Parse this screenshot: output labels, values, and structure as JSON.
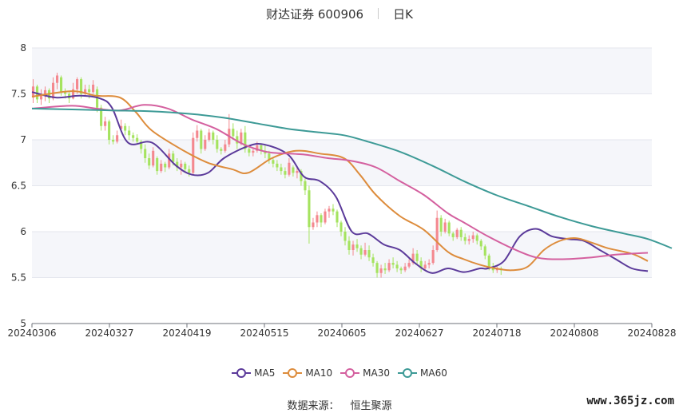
{
  "header": {
    "stock_name_code": "财达证券 600906",
    "period": "日K"
  },
  "footer": {
    "source_label": "数据来源：",
    "source_name": "恒生聚源"
  },
  "watermark": "www.365jz.com",
  "colors": {
    "up": "#f4888f",
    "down": "#a5e35f",
    "MA5": "#5b3a9a",
    "MA10": "#dd8c3c",
    "MA30": "#d4609f",
    "MA60": "#3d9a96",
    "band": "#f5f6fa",
    "grid": "#e4e6ee"
  },
  "chart_data": {
    "type": "candlestick",
    "title": "财达证券 600906",
    "period": "日K",
    "ylim": [
      5,
      8
    ],
    "y_ticks": [
      "8",
      "7.5",
      "7",
      "6.5",
      "6",
      "5.5",
      "5"
    ],
    "x_ticks": [
      "20240306",
      "20240327",
      "20240419",
      "20240515",
      "20240605",
      "20240627",
      "20240718",
      "20240808",
      "20240828"
    ],
    "grid": true,
    "legend": {
      "position": "bottom",
      "items": [
        "MA5",
        "MA10",
        "MA30",
        "MA60"
      ]
    },
    "ohlc_columns": [
      "open",
      "high",
      "low",
      "close"
    ],
    "candles": [
      [
        7.46,
        7.66,
        7.4,
        7.58
      ],
      [
        7.58,
        7.6,
        7.4,
        7.44
      ],
      [
        7.44,
        7.55,
        7.38,
        7.48
      ],
      [
        7.48,
        7.58,
        7.42,
        7.54
      ],
      [
        7.54,
        7.56,
        7.4,
        7.45
      ],
      [
        7.45,
        7.68,
        7.43,
        7.62
      ],
      [
        7.62,
        7.73,
        7.55,
        7.7
      ],
      [
        7.68,
        7.7,
        7.48,
        7.52
      ],
      [
        7.52,
        7.56,
        7.45,
        7.5
      ],
      [
        7.5,
        7.52,
        7.4,
        7.45
      ],
      [
        7.45,
        7.62,
        7.44,
        7.55
      ],
      [
        7.55,
        7.68,
        7.5,
        7.66
      ],
      [
        7.66,
        7.68,
        7.45,
        7.5
      ],
      [
        7.5,
        7.6,
        7.48,
        7.55
      ],
      [
        7.55,
        7.6,
        7.45,
        7.52
      ],
      [
        7.52,
        7.65,
        7.5,
        7.6
      ],
      [
        7.55,
        7.58,
        7.3,
        7.35
      ],
      [
        7.35,
        7.38,
        7.1,
        7.15
      ],
      [
        7.15,
        7.25,
        7.1,
        7.2
      ],
      [
        7.2,
        7.22,
        6.95,
        7.0
      ],
      [
        7.0,
        7.05,
        6.95,
        6.98
      ],
      [
        6.98,
        7.1,
        6.96,
        7.05
      ],
      [
        7.12,
        7.22,
        7.1,
        7.15
      ],
      [
        7.15,
        7.18,
        7.05,
        7.1
      ],
      [
        7.1,
        7.15,
        7.0,
        7.05
      ],
      [
        7.05,
        7.08,
        6.98,
        7.02
      ],
      [
        7.02,
        7.06,
        6.95,
        6.98
      ],
      [
        6.98,
        7.0,
        6.85,
        6.9
      ],
      [
        6.9,
        6.95,
        6.75,
        6.8
      ],
      [
        6.8,
        6.85,
        6.68,
        6.72
      ],
      [
        6.72,
        6.92,
        6.7,
        6.88
      ],
      [
        6.8,
        6.82,
        6.62,
        6.66
      ],
      [
        6.66,
        6.78,
        6.64,
        6.74
      ],
      [
        6.74,
        6.76,
        6.65,
        6.7
      ],
      [
        6.7,
        6.9,
        6.68,
        6.85
      ],
      [
        6.85,
        6.88,
        6.72,
        6.76
      ],
      [
        6.76,
        6.8,
        6.66,
        6.7
      ],
      [
        6.7,
        6.78,
        6.62,
        6.74
      ],
      [
        6.74,
        6.76,
        6.64,
        6.68
      ],
      [
        6.68,
        6.72,
        6.6,
        6.64
      ],
      [
        6.64,
        7.08,
        6.62,
        7.02
      ],
      [
        7.02,
        7.16,
        6.98,
        7.1
      ],
      [
        7.1,
        7.12,
        6.85,
        6.9
      ],
      [
        6.9,
        7.05,
        6.88,
        7.0
      ],
      [
        7.0,
        7.12,
        6.98,
        7.08
      ],
      [
        7.08,
        7.1,
        6.95,
        7.0
      ],
      [
        7.0,
        7.05,
        6.86,
        6.9
      ],
      [
        6.9,
        6.92,
        6.84,
        6.88
      ],
      [
        6.88,
        7.0,
        6.86,
        6.95
      ],
      [
        6.95,
        7.28,
        6.92,
        7.12
      ],
      [
        7.12,
        7.18,
        7.0,
        7.04
      ],
      [
        7.04,
        7.1,
        6.9,
        6.96
      ],
      [
        6.96,
        7.12,
        6.94,
        7.08
      ],
      [
        7.08,
        7.15,
        6.86,
        6.9
      ],
      [
        6.9,
        6.92,
        6.82,
        6.86
      ],
      [
        6.86,
        6.9,
        6.82,
        6.88
      ],
      [
        6.88,
        6.98,
        6.86,
        6.94
      ],
      [
        6.94,
        6.96,
        6.84,
        6.88
      ],
      [
        6.88,
        6.94,
        6.8,
        6.85
      ],
      [
        6.85,
        6.88,
        6.74,
        6.78
      ],
      [
        6.78,
        6.8,
        6.7,
        6.74
      ],
      [
        6.74,
        6.78,
        6.66,
        6.7
      ],
      [
        6.7,
        6.74,
        6.62,
        6.66
      ],
      [
        6.66,
        6.7,
        6.58,
        6.62
      ],
      [
        6.62,
        6.8,
        6.6,
        6.75
      ],
      [
        6.7,
        6.72,
        6.6,
        6.64
      ],
      [
        6.64,
        6.7,
        6.58,
        6.66
      ],
      [
        6.66,
        6.68,
        6.5,
        6.55
      ],
      [
        6.55,
        6.58,
        6.4,
        6.45
      ],
      [
        6.45,
        6.5,
        5.87,
        6.05
      ],
      [
        6.05,
        6.15,
        6.02,
        6.1
      ],
      [
        6.1,
        6.22,
        6.05,
        6.18
      ],
      [
        6.18,
        6.2,
        6.05,
        6.1
      ],
      [
        6.1,
        6.25,
        6.08,
        6.22
      ],
      [
        6.22,
        6.28,
        6.15,
        6.25
      ],
      [
        6.25,
        6.3,
        6.18,
        6.22
      ],
      [
        6.22,
        6.24,
        6.05,
        6.1
      ],
      [
        6.1,
        6.12,
        5.95,
        6.0
      ],
      [
        6.0,
        6.05,
        5.85,
        5.9
      ],
      [
        5.9,
        5.95,
        5.75,
        5.8
      ],
      [
        5.8,
        5.9,
        5.74,
        5.86
      ],
      [
        5.86,
        5.92,
        5.78,
        5.82
      ],
      [
        5.82,
        5.85,
        5.7,
        5.75
      ],
      [
        5.75,
        5.88,
        5.73,
        5.8
      ],
      [
        5.8,
        5.85,
        5.68,
        5.72
      ],
      [
        5.72,
        5.76,
        5.62,
        5.66
      ],
      [
        5.66,
        5.68,
        5.5,
        5.55
      ],
      [
        5.55,
        5.64,
        5.5,
        5.6
      ],
      [
        5.6,
        5.66,
        5.54,
        5.58
      ],
      [
        5.58,
        5.7,
        5.56,
        5.66
      ],
      [
        5.66,
        5.72,
        5.6,
        5.64
      ],
      [
        5.64,
        5.68,
        5.56,
        5.6
      ],
      [
        5.6,
        5.62,
        5.54,
        5.58
      ],
      [
        5.58,
        5.66,
        5.56,
        5.62
      ],
      [
        5.62,
        5.7,
        5.6,
        5.66
      ],
      [
        5.66,
        5.82,
        5.64,
        5.76
      ],
      [
        5.76,
        5.8,
        5.64,
        5.68
      ],
      [
        5.68,
        5.72,
        5.56,
        5.6
      ],
      [
        5.6,
        5.68,
        5.58,
        5.64
      ],
      [
        5.64,
        5.7,
        5.6,
        5.66
      ],
      [
        5.66,
        5.85,
        5.64,
        5.8
      ],
      [
        5.8,
        6.23,
        5.78,
        6.15
      ],
      [
        6.15,
        6.18,
        5.95,
        6.0
      ],
      [
        6.0,
        6.14,
        5.98,
        6.1
      ],
      [
        6.1,
        6.12,
        5.95,
        5.98
      ],
      [
        5.98,
        6.0,
        5.9,
        5.94
      ],
      [
        5.94,
        6.04,
        5.92,
        6.02
      ],
      [
        6.02,
        6.05,
        5.9,
        5.94
      ],
      [
        5.94,
        5.98,
        5.86,
        5.9
      ],
      [
        5.9,
        5.96,
        5.86,
        5.92
      ],
      [
        5.92,
        6.0,
        5.88,
        5.96
      ],
      [
        5.96,
        5.98,
        5.86,
        5.9
      ],
      [
        5.9,
        5.92,
        5.8,
        5.84
      ],
      [
        5.84,
        5.86,
        5.7,
        5.74
      ],
      [
        5.74,
        5.76,
        5.58,
        5.62
      ],
      [
        5.62,
        5.66,
        5.55,
        5.58
      ],
      [
        5.58,
        5.62,
        5.55,
        5.6
      ],
      [
        5.6,
        5.62,
        5.53,
        5.58
      ]
    ],
    "series": [
      {
        "name": "MA5",
        "points": [
          [
            0,
            7.52
          ],
          [
            6,
            7.46
          ],
          [
            12,
            7.48
          ],
          [
            17,
            7.45
          ],
          [
            20,
            7.35
          ],
          [
            24,
            6.97
          ],
          [
            30,
            6.97
          ],
          [
            36,
            6.72
          ],
          [
            40,
            6.62
          ],
          [
            44,
            6.64
          ],
          [
            48,
            6.8
          ],
          [
            54,
            6.93
          ],
          [
            58,
            6.95
          ],
          [
            64,
            6.84
          ],
          [
            68,
            6.6
          ],
          [
            72,
            6.55
          ],
          [
            76,
            6.38
          ],
          [
            80,
            6.0
          ],
          [
            84,
            5.98
          ],
          [
            88,
            5.86
          ],
          [
            92,
            5.8
          ],
          [
            96,
            5.65
          ],
          [
            100,
            5.55
          ],
          [
            104,
            5.6
          ],
          [
            108,
            5.56
          ],
          [
            112,
            5.6
          ],
          [
            114,
            5.6
          ],
          [
            118,
            5.68
          ],
          [
            122,
            5.95
          ],
          [
            126,
            6.03
          ],
          [
            130,
            5.95
          ],
          [
            134,
            5.92
          ],
          [
            138,
            5.9
          ],
          [
            142,
            5.8
          ],
          [
            146,
            5.7
          ],
          [
            150,
            5.6
          ],
          [
            154,
            5.57
          ]
        ]
      },
      {
        "name": "MA10",
        "points": [
          [
            0,
            7.47
          ],
          [
            10,
            7.53
          ],
          [
            16,
            7.48
          ],
          [
            22,
            7.46
          ],
          [
            26,
            7.3
          ],
          [
            30,
            7.1
          ],
          [
            38,
            6.88
          ],
          [
            44,
            6.75
          ],
          [
            50,
            6.68
          ],
          [
            54,
            6.64
          ],
          [
            60,
            6.8
          ],
          [
            66,
            6.88
          ],
          [
            72,
            6.85
          ],
          [
            78,
            6.8
          ],
          [
            82,
            6.62
          ],
          [
            86,
            6.4
          ],
          [
            92,
            6.17
          ],
          [
            98,
            6.02
          ],
          [
            104,
            5.78
          ],
          [
            108,
            5.7
          ],
          [
            112,
            5.64
          ],
          [
            116,
            5.6
          ],
          [
            120,
            5.58
          ],
          [
            124,
            5.62
          ],
          [
            128,
            5.8
          ],
          [
            132,
            5.9
          ],
          [
            136,
            5.93
          ],
          [
            140,
            5.88
          ],
          [
            144,
            5.82
          ],
          [
            150,
            5.76
          ],
          [
            154,
            5.68
          ]
        ]
      },
      {
        "name": "MA30",
        "points": [
          [
            0,
            7.34
          ],
          [
            10,
            7.37
          ],
          [
            16,
            7.34
          ],
          [
            22,
            7.32
          ],
          [
            28,
            7.38
          ],
          [
            34,
            7.34
          ],
          [
            40,
            7.22
          ],
          [
            46,
            7.12
          ],
          [
            52,
            6.97
          ],
          [
            56,
            6.9
          ],
          [
            60,
            6.86
          ],
          [
            68,
            6.84
          ],
          [
            74,
            6.8
          ],
          [
            80,
            6.77
          ],
          [
            86,
            6.7
          ],
          [
            92,
            6.55
          ],
          [
            98,
            6.4
          ],
          [
            104,
            6.2
          ],
          [
            108,
            6.1
          ],
          [
            114,
            5.95
          ],
          [
            120,
            5.82
          ],
          [
            126,
            5.72
          ],
          [
            132,
            5.7
          ],
          [
            140,
            5.72
          ],
          [
            146,
            5.75
          ],
          [
            154,
            5.77
          ]
        ]
      },
      {
        "name": "MA60",
        "points": [
          [
            0,
            7.34
          ],
          [
            10,
            7.33
          ],
          [
            20,
            7.32
          ],
          [
            30,
            7.31
          ],
          [
            40,
            7.28
          ],
          [
            48,
            7.24
          ],
          [
            56,
            7.18
          ],
          [
            64,
            7.12
          ],
          [
            72,
            7.08
          ],
          [
            78,
            7.05
          ],
          [
            84,
            6.98
          ],
          [
            92,
            6.87
          ],
          [
            100,
            6.72
          ],
          [
            108,
            6.55
          ],
          [
            116,
            6.4
          ],
          [
            124,
            6.28
          ],
          [
            132,
            6.16
          ],
          [
            140,
            6.06
          ],
          [
            148,
            5.98
          ],
          [
            154,
            5.92
          ],
          [
            160,
            5.82
          ]
        ]
      }
    ]
  }
}
